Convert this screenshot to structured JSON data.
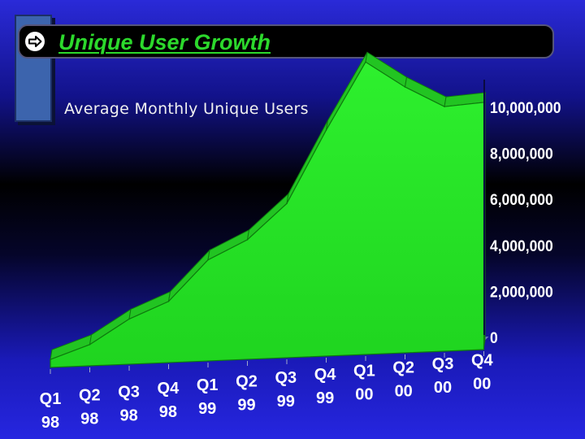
{
  "slide": {
    "title": "Unique User Growth",
    "icon": "arrow-right-icon"
  },
  "colors": {
    "area_front": "#1fd41f",
    "area_top": "#22c422",
    "area_dark": "#0e7a0e",
    "axis_wall": "#8fa0c8",
    "title_text": "#2cd92c"
  },
  "chart_data": {
    "type": "area",
    "title": "Average Monthly Unique Users",
    "xlabel": "",
    "ylabel": "",
    "categories": [
      [
        "Q1",
        "98"
      ],
      [
        "Q2",
        "98"
      ],
      [
        "Q3",
        "98"
      ],
      [
        "Q4",
        "98"
      ],
      [
        "Q1",
        "99"
      ],
      [
        "Q2",
        "99"
      ],
      [
        "Q3",
        "99"
      ],
      [
        "Q4",
        "99"
      ],
      [
        "Q1",
        "00"
      ],
      [
        "Q2",
        "00"
      ],
      [
        "Q3",
        "00"
      ],
      [
        "Q4",
        "00"
      ]
    ],
    "series": [
      {
        "values": [
          300000,
          800000,
          1700000,
          2300000,
          3800000,
          4500000,
          5800000,
          8500000,
          11000000,
          10000000,
          9200000,
          9300000
        ]
      }
    ],
    "ylim": [
      0,
      10000000
    ],
    "yticks": [
      {
        "value": 0,
        "label": "0"
      },
      {
        "value": 2000000,
        "label": "2,000,000"
      },
      {
        "value": 4000000,
        "label": "4,000,000"
      },
      {
        "value": 6000000,
        "label": "6,000,000"
      },
      {
        "value": 8000000,
        "label": "8,000,000"
      },
      {
        "value": 10000000,
        "label": "10,000,000"
      }
    ],
    "grid": false,
    "legend": "none",
    "perspective": "3d"
  }
}
